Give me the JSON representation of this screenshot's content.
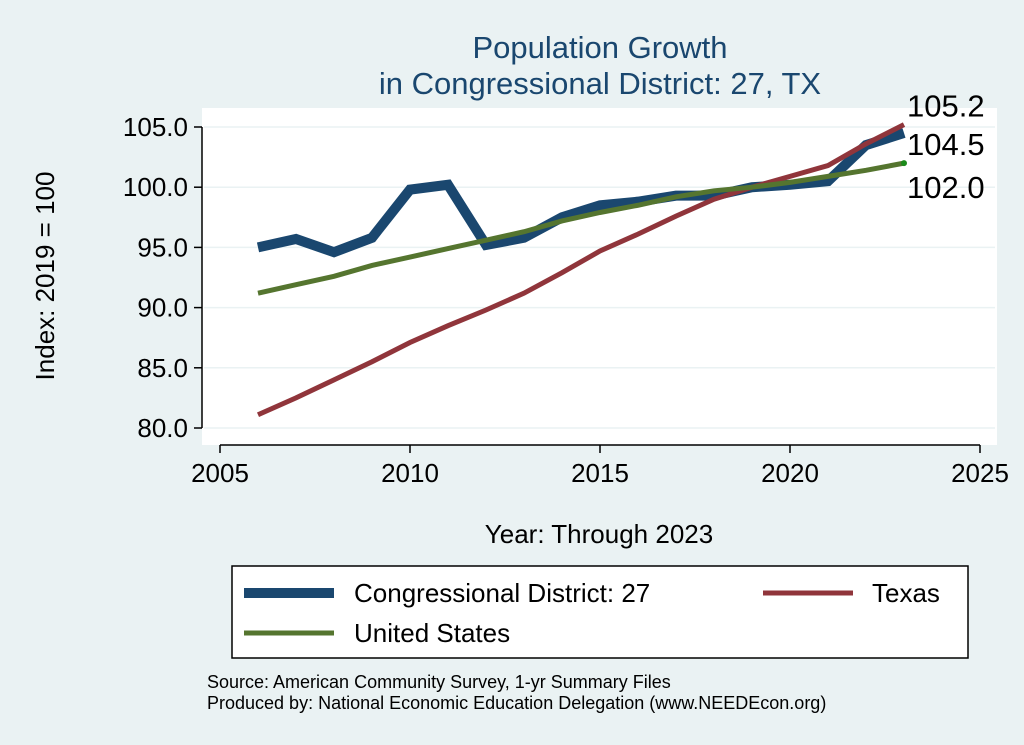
{
  "chart_data": {
    "type": "line",
    "title": [
      "Population Growth",
      "in Congressional District: 27, TX"
    ],
    "xlabel": "Year: Through 2023",
    "ylabel": "Index: 2019 = 100",
    "xlim": [
      2005,
      2025
    ],
    "ylim": [
      80,
      105
    ],
    "xticks": [
      2005,
      2010,
      2015,
      2020,
      2025
    ],
    "xtick_labels": [
      "2005",
      "2010",
      "2015",
      "2020",
      "2025"
    ],
    "yticks": [
      80,
      85,
      90,
      95,
      100,
      105
    ],
    "ytick_labels": [
      "80.0",
      "85.0",
      "90.0",
      "95.0",
      "100.0",
      "105.0"
    ],
    "grid": true,
    "legend_position": "bottom",
    "x": [
      2006,
      2007,
      2008,
      2009,
      2010,
      2011,
      2012,
      2013,
      2014,
      2015,
      2016,
      2017,
      2018,
      2019,
      2020,
      2021,
      2022,
      2023
    ],
    "series": [
      {
        "name": "Congressional District: 27",
        "color": "#1a476f",
        "values": [
          95.0,
          95.7,
          94.6,
          95.8,
          99.8,
          100.2,
          95.2,
          95.8,
          97.5,
          98.5,
          98.8,
          99.3,
          99.3,
          100.0,
          100.2,
          100.5,
          103.5,
          104.5
        ],
        "end_label": "104.5"
      },
      {
        "name": "Texas",
        "color": "#90353b",
        "values": [
          81.1,
          82.5,
          84.0,
          85.5,
          87.1,
          88.5,
          89.8,
          91.2,
          92.9,
          94.7,
          96.1,
          97.6,
          99.0,
          100.0,
          100.9,
          101.8,
          103.6,
          105.2
        ],
        "end_label": "105.2"
      },
      {
        "name": "United States",
        "color": "#55752f",
        "values": [
          91.2,
          91.9,
          92.6,
          93.5,
          94.2,
          94.9,
          95.6,
          96.3,
          97.2,
          97.9,
          98.5,
          99.2,
          99.7,
          100.0,
          100.4,
          100.9,
          101.4,
          102.0
        ],
        "end_label": "102.0"
      }
    ],
    "notes": [
      "Source: American Community Survey, 1-yr Summary Files",
      "Produced by: National Economic Education Delegation (www.NEEDEcon.org)"
    ]
  },
  "colors": {
    "background": "#eaf2f3",
    "plot_background": "#ffffff",
    "title": "#1a476f",
    "grid": "#eaf2f3"
  }
}
